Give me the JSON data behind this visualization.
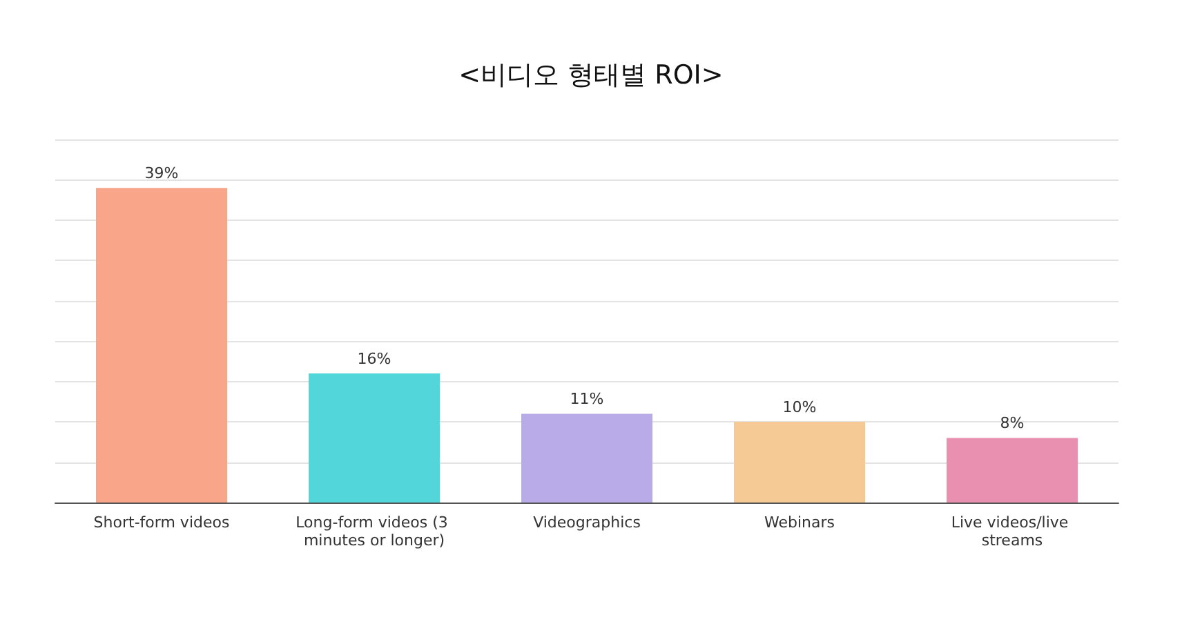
{
  "chart_data": {
    "type": "bar",
    "title": "<비디오 형태별 ROI>",
    "categories": [
      "Short-form videos",
      "Long-form videos (3 minutes or longer)",
      "Videographics",
      "Webinars",
      "Live videos/live streams"
    ],
    "values": [
      39,
      16,
      11,
      10,
      8
    ],
    "value_labels": [
      "39%",
      "16%",
      "11%",
      "10%",
      "8%"
    ],
    "colors": [
      "#f9a58a",
      "#52d6da",
      "#b9aae8",
      "#f5ca94",
      "#e990b0"
    ],
    "ylim": [
      0,
      45
    ],
    "yticks": [
      {
        "value": 0,
        "label": null
      },
      {
        "value": 5,
        "label": null
      },
      {
        "value": 10,
        "label": null
      },
      {
        "value": 15,
        "label": null
      },
      {
        "value": 20,
        "label": null
      },
      {
        "value": 25,
        "label": null
      },
      {
        "value": 30,
        "label": null
      },
      {
        "value": 35,
        "label": null
      },
      {
        "value": 40,
        "label": null
      },
      {
        "value": 45,
        "label": null
      }
    ],
    "grid": "y",
    "tick_labels": "x"
  }
}
